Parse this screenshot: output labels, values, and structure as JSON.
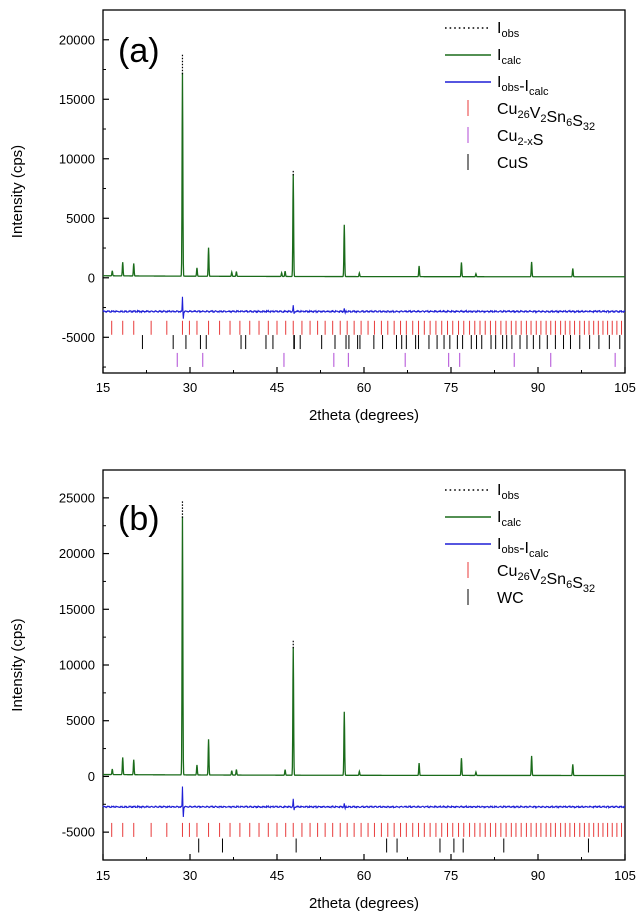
{
  "chart_data": [
    {
      "type": "line",
      "panel_label": "(a)",
      "xlabel": "2theta (degrees)",
      "ylabel": "Intensity (cps)",
      "xlim": [
        15,
        105
      ],
      "ylim": [
        -8000,
        22500
      ],
      "x_ticks": [
        15,
        30,
        45,
        60,
        75,
        90,
        105
      ],
      "y_ticks": [
        -5000,
        0,
        5000,
        10000,
        15000,
        20000
      ],
      "legend_position": "top-right",
      "legend": [
        {
          "base": "I",
          "sub": "obs",
          "sub2": "",
          "mid": "",
          "style": "dotted",
          "color": "#000000"
        },
        {
          "base": "I",
          "sub": "calc",
          "sub2": "",
          "mid": "",
          "style": "line",
          "color": "#1a6b1a"
        },
        {
          "base": "I",
          "sub": "obs",
          "mid": "-I",
          "sub2": "calc",
          "style": "line",
          "color": "#1f1fd6"
        },
        {
          "base": "Cu",
          "sub": "26",
          "mid": "V",
          "sub2": "2",
          "extra": [
            [
              "Sn",
              "6"
            ],
            [
              "S",
              "32"
            ]
          ],
          "style": "tick",
          "color": "#e83a3a"
        },
        {
          "base": "Cu",
          "sub": "2-x",
          "mid": "S",
          "sub2": "",
          "style": "tick",
          "color": "#b04ad6"
        },
        {
          "base": "CuS",
          "sub": "",
          "mid": "",
          "sub2": "",
          "style": "tick",
          "color": "#000000"
        }
      ],
      "peaks": [
        {
          "x": 16.6,
          "y": 420
        },
        {
          "x": 18.4,
          "y": 1150
        },
        {
          "x": 20.3,
          "y": 1050
        },
        {
          "x": 28.7,
          "y": 17100,
          "obs": 18800
        },
        {
          "x": 31.2,
          "y": 700
        },
        {
          "x": 33.2,
          "y": 2400
        },
        {
          "x": 37.2,
          "y": 350
        },
        {
          "x": 38.0,
          "y": 400
        },
        {
          "x": 45.8,
          "y": 300
        },
        {
          "x": 46.4,
          "y": 450
        },
        {
          "x": 47.8,
          "y": 8600,
          "obs": 9100
        },
        {
          "x": 56.6,
          "y": 4350
        },
        {
          "x": 59.2,
          "y": 300
        },
        {
          "x": 69.5,
          "y": 900
        },
        {
          "x": 76.8,
          "y": 1200
        },
        {
          "x": 79.3,
          "y": 250
        },
        {
          "x": 88.9,
          "y": 1250
        },
        {
          "x": 96.0,
          "y": 700
        }
      ],
      "diff_baseline": -2800,
      "diff_spikes": [
        {
          "x": 28.7,
          "y": 1200
        },
        {
          "x": 47.8,
          "y": 500
        },
        {
          "x": 56.6,
          "y": 250
        }
      ],
      "phase_ticks": [
        {
          "name": "Cu26V2Sn6S32",
          "color": "#e83a3a",
          "y_center": -4200,
          "positions": [
            16.5,
            18.4,
            20.3,
            23.3,
            26.0,
            28.7,
            29.9,
            31.2,
            33.2,
            35.1,
            36.9,
            38.6,
            40.3,
            41.9,
            43.5,
            45.0,
            46.5,
            47.8,
            49.3,
            50.7,
            52.0,
            53.3,
            54.6,
            55.9,
            57.1,
            58.3,
            59.5,
            60.7,
            61.8,
            63.0,
            64.1,
            65.2,
            66.3,
            67.3,
            68.4,
            69.4,
            70.4,
            71.4,
            72.4,
            73.4,
            74.4,
            75.3,
            76.3,
            77.2,
            78.2,
            79.1,
            80.0,
            80.9,
            81.8,
            82.7,
            83.6,
            84.5,
            85.4,
            86.2,
            87.1,
            88.0,
            88.8,
            89.7,
            90.5,
            91.4,
            92.2,
            93.0,
            93.9,
            94.7,
            95.5,
            96.3,
            97.2,
            98.0,
            98.8,
            99.6,
            100.4,
            101.2,
            102.0,
            102.8,
            103.6,
            104.4
          ]
        },
        {
          "name": "CuS",
          "color": "#000000",
          "y_center": -5400,
          "positions": [
            21.8,
            27.1,
            29.3,
            31.8,
            32.8,
            38.8,
            39.6,
            43.1,
            44.3,
            47.9,
            48.0,
            49.0,
            52.7,
            55.0,
            56.9,
            57.4,
            58.9,
            59.3,
            61.7,
            63.2,
            65.6,
            66.5,
            67.3,
            68.9,
            69.4,
            71.2,
            72.6,
            73.8,
            74.8,
            76.1,
            77.0,
            78.5,
            79.4,
            80.3,
            81.9,
            82.7,
            83.9,
            84.6,
            85.5,
            86.9,
            88.1,
            89.2,
            90.3,
            91.6,
            93.0,
            94.4,
            95.6,
            97.2,
            98.9,
            100.5,
            102.3,
            104.1
          ]
        },
        {
          "name": "Cu2-xS",
          "color": "#b04ad6",
          "y_center": -6900,
          "positions": [
            27.8,
            32.2,
            46.2,
            54.8,
            57.3,
            67.1,
            74.6,
            76.5,
            85.9,
            92.2,
            103.3
          ]
        }
      ]
    },
    {
      "type": "line",
      "panel_label": "(b)",
      "xlabel": "2theta (degrees)",
      "ylabel": "Intensity (cps)",
      "xlim": [
        15,
        105
      ],
      "ylim": [
        -7500,
        27500
      ],
      "x_ticks": [
        15,
        30,
        45,
        60,
        75,
        90,
        105
      ],
      "y_ticks": [
        -5000,
        0,
        5000,
        10000,
        15000,
        20000,
        25000
      ],
      "legend_position": "top-right",
      "legend": [
        {
          "base": "I",
          "sub": "obs",
          "sub2": "",
          "mid": "",
          "style": "dotted",
          "color": "#000000"
        },
        {
          "base": "I",
          "sub": "calc",
          "sub2": "",
          "mid": "",
          "style": "line",
          "color": "#1a6b1a"
        },
        {
          "base": "I",
          "sub": "obs",
          "mid": "-I",
          "sub2": "calc",
          "style": "line",
          "color": "#1f1fd6"
        },
        {
          "base": "Cu",
          "sub": "26",
          "mid": "V",
          "sub2": "2",
          "extra": [
            [
              "Sn",
              "6"
            ],
            [
              "S",
              "32"
            ]
          ],
          "style": "tick",
          "color": "#e83a3a"
        },
        {
          "base": "WC",
          "sub": "",
          "mid": "",
          "sub2": "",
          "style": "tick",
          "color": "#000000"
        }
      ],
      "peaks": [
        {
          "x": 16.6,
          "y": 500
        },
        {
          "x": 18.4,
          "y": 1550
        },
        {
          "x": 20.3,
          "y": 1350
        },
        {
          "x": 28.7,
          "y": 23200,
          "obs": 24700
        },
        {
          "x": 31.2,
          "y": 900
        },
        {
          "x": 33.2,
          "y": 3200
        },
        {
          "x": 37.2,
          "y": 400
        },
        {
          "x": 38.0,
          "y": 500
        },
        {
          "x": 46.4,
          "y": 500
        },
        {
          "x": 47.8,
          "y": 11500,
          "obs": 12200
        },
        {
          "x": 56.6,
          "y": 5700
        },
        {
          "x": 59.2,
          "y": 350
        },
        {
          "x": 69.5,
          "y": 1100
        },
        {
          "x": 76.8,
          "y": 1550
        },
        {
          "x": 79.3,
          "y": 300
        },
        {
          "x": 88.9,
          "y": 1750
        },
        {
          "x": 96.0,
          "y": 1000
        }
      ],
      "diff_baseline": -2700,
      "diff_spikes": [
        {
          "x": 28.7,
          "y": 1800
        },
        {
          "x": 47.8,
          "y": 700
        },
        {
          "x": 56.6,
          "y": 300
        }
      ],
      "phase_ticks": [
        {
          "name": "Cu26V2Sn6S32",
          "color": "#e83a3a",
          "y_center": -4800,
          "positions": [
            16.5,
            18.4,
            20.3,
            23.3,
            26.0,
            28.7,
            29.9,
            31.2,
            33.2,
            35.1,
            36.9,
            38.6,
            40.3,
            41.9,
            43.5,
            45.0,
            46.5,
            47.8,
            49.3,
            50.7,
            52.0,
            53.3,
            54.6,
            55.9,
            57.1,
            58.3,
            59.5,
            60.7,
            61.8,
            63.0,
            64.1,
            65.2,
            66.3,
            67.3,
            68.4,
            69.4,
            70.4,
            71.4,
            72.4,
            73.4,
            74.4,
            75.3,
            76.3,
            77.2,
            78.2,
            79.1,
            80.0,
            80.9,
            81.8,
            82.7,
            83.6,
            84.5,
            85.4,
            86.2,
            87.1,
            88.0,
            88.8,
            89.7,
            90.5,
            91.4,
            92.2,
            93.0,
            93.9,
            94.7,
            95.5,
            96.3,
            97.2,
            98.0,
            98.8,
            99.6,
            100.4,
            101.2,
            102.0,
            102.8,
            103.6,
            104.4
          ]
        },
        {
          "name": "WC",
          "color": "#000000",
          "y_center": -6200,
          "positions": [
            31.5,
            35.6,
            48.3,
            63.9,
            65.7,
            73.1,
            75.5,
            77.1,
            84.1,
            98.7
          ]
        }
      ]
    }
  ]
}
